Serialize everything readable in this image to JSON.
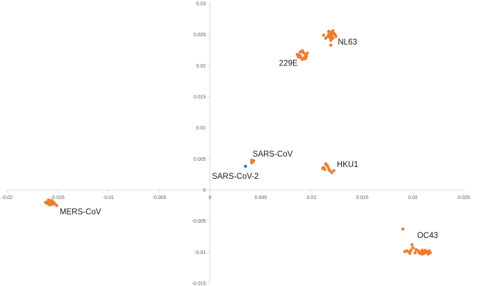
{
  "chart_data": {
    "type": "scatter",
    "title": "",
    "xlabel": "",
    "ylabel": "",
    "xlim": [
      -0.02,
      0.025
    ],
    "ylim": [
      -0.015,
      0.03
    ],
    "grid": false,
    "legend": "none",
    "x_ticks": [
      -0.02,
      -0.015,
      -0.01,
      -0.005,
      0,
      0.005,
      0.01,
      0.015,
      0.02,
      0.025
    ],
    "x_tick_labels": [
      "-0.02",
      "-0.015",
      "-0.01",
      "-0.005",
      "0",
      "0.005",
      "0.01",
      "0.015",
      "0.02",
      "0.025"
    ],
    "y_ticks": [
      0.03,
      0.025,
      0.02,
      0.015,
      0.01,
      0.005,
      0,
      -0.005,
      -0.01,
      -0.015
    ],
    "y_tick_labels": [
      "0.03",
      "0.025",
      "0.02",
      "0.015",
      "0.01",
      "0.005",
      "0",
      "-0.005",
      "-0.01",
      "-0.015"
    ],
    "colors": {
      "orange": "#ED7D31",
      "blue": "#4472C4",
      "axis": "#d9d9d9"
    },
    "series": [
      {
        "color": "#ED7D31",
        "points": [
          [
            0.0117,
            0.025
          ],
          [
            0.0119,
            0.0253
          ],
          [
            0.0121,
            0.0256
          ],
          [
            0.012,
            0.0248
          ],
          [
            0.0118,
            0.0245
          ],
          [
            0.0123,
            0.025
          ],
          [
            0.0116,
            0.0247
          ],
          [
            0.0122,
            0.0252
          ],
          [
            0.0114,
            0.0244
          ],
          [
            0.0119,
            0.0241
          ],
          [
            0.0121,
            0.0244
          ],
          [
            0.0117,
            0.0255
          ],
          [
            0.0124,
            0.0247
          ],
          [
            0.0112,
            0.0249
          ],
          [
            0.012,
            0.0252
          ],
          [
            0.0118,
            0.025
          ],
          [
            0.0119,
            0.0233
          ],
          [
            0.0088,
            0.0217
          ],
          [
            0.0092,
            0.0221
          ],
          [
            0.0095,
            0.0215
          ],
          [
            0.009,
            0.0212
          ],
          [
            0.0087,
            0.0214
          ],
          [
            0.0094,
            0.0218
          ],
          [
            0.0091,
            0.021
          ],
          [
            0.0096,
            0.022
          ],
          [
            0.0089,
            0.0222
          ],
          [
            0.0093,
            0.0213
          ],
          [
            0.0086,
            0.0218
          ],
          [
            0.0091,
            0.0224
          ],
          [
            0.0094,
            0.0211
          ],
          [
            0.0089,
            0.0215
          ],
          [
            0.0041,
            0.0048
          ],
          [
            0.0042,
            0.0045
          ],
          [
            0.0043,
            0.0047
          ],
          [
            0.0041,
            0.0044
          ],
          [
            0.0112,
            0.0036
          ],
          [
            0.0115,
            0.004
          ],
          [
            0.0113,
            0.0033
          ],
          [
            0.0118,
            0.0031
          ],
          [
            0.0122,
            0.0031
          ],
          [
            0.0116,
            0.0038
          ],
          [
            0.012,
            0.0028
          ],
          [
            0.0114,
            0.0042
          ],
          [
            0.0111,
            0.0035
          ],
          [
            0.0117,
            0.0034
          ],
          [
            -0.0158,
            -0.002
          ],
          [
            -0.0156,
            -0.0021
          ],
          [
            -0.016,
            -0.0022
          ],
          [
            -0.0157,
            -0.0018
          ],
          [
            -0.0155,
            -0.0023
          ],
          [
            -0.0159,
            -0.0019
          ],
          [
            -0.0161,
            -0.0021
          ],
          [
            -0.0154,
            -0.002
          ],
          [
            -0.0158,
            -0.0024
          ],
          [
            -0.0156,
            -0.0017
          ],
          [
            -0.016,
            -0.0019
          ],
          [
            -0.0153,
            -0.0022
          ],
          [
            -0.0157,
            -0.0023
          ],
          [
            -0.0151,
            -0.0025
          ],
          [
            -0.0159,
            -0.0016
          ],
          [
            -0.0162,
            -0.002
          ],
          [
            -0.0155,
            -0.0019
          ],
          [
            -0.0157,
            -0.0021
          ],
          [
            0.0205,
            -0.0098
          ],
          [
            0.0208,
            -0.01
          ],
          [
            0.0211,
            -0.0102
          ],
          [
            0.0214,
            -0.0099
          ],
          [
            0.0217,
            -0.0101
          ],
          [
            0.0209,
            -0.0103
          ],
          [
            0.0206,
            -0.0101
          ],
          [
            0.0212,
            -0.0097
          ],
          [
            0.0215,
            -0.0103
          ],
          [
            0.021,
            -0.0099
          ],
          [
            0.0207,
            -0.0102
          ],
          [
            0.0213,
            -0.01
          ],
          [
            0.0198,
            -0.0097
          ],
          [
            0.0196,
            -0.01
          ],
          [
            0.02,
            -0.0093
          ],
          [
            0.0194,
            -0.0098
          ],
          [
            0.0199,
            -0.0088
          ],
          [
            0.0202,
            -0.0101
          ],
          [
            0.0197,
            -0.0102
          ],
          [
            0.019,
            -0.0063
          ],
          [
            0.0203,
            -0.0096
          ],
          [
            0.0216,
            -0.0098
          ],
          [
            0.0209,
            -0.0097
          ],
          [
            0.0192,
            -0.0099
          ]
        ]
      },
      {
        "color": "#4472C4",
        "points": [
          [
            0.0035,
            0.0038
          ]
        ]
      }
    ],
    "annotations": [
      {
        "text": "NL63",
        "x": 0.0126,
        "y": 0.0234
      },
      {
        "text": "229E",
        "x": 0.0068,
        "y": 0.02
      },
      {
        "text": "SARS-CoV",
        "x": 0.0042,
        "y": 0.0054
      },
      {
        "text": "HKU1",
        "x": 0.0125,
        "y": 0.0037
      },
      {
        "text": "SARS-CoV-2",
        "x": 0.0002,
        "y": 0.0018
      },
      {
        "text": "MERS-CoV",
        "x": -0.0148,
        "y": -0.0039
      },
      {
        "text": "OC43",
        "x": 0.0204,
        "y": -0.0077
      }
    ]
  }
}
